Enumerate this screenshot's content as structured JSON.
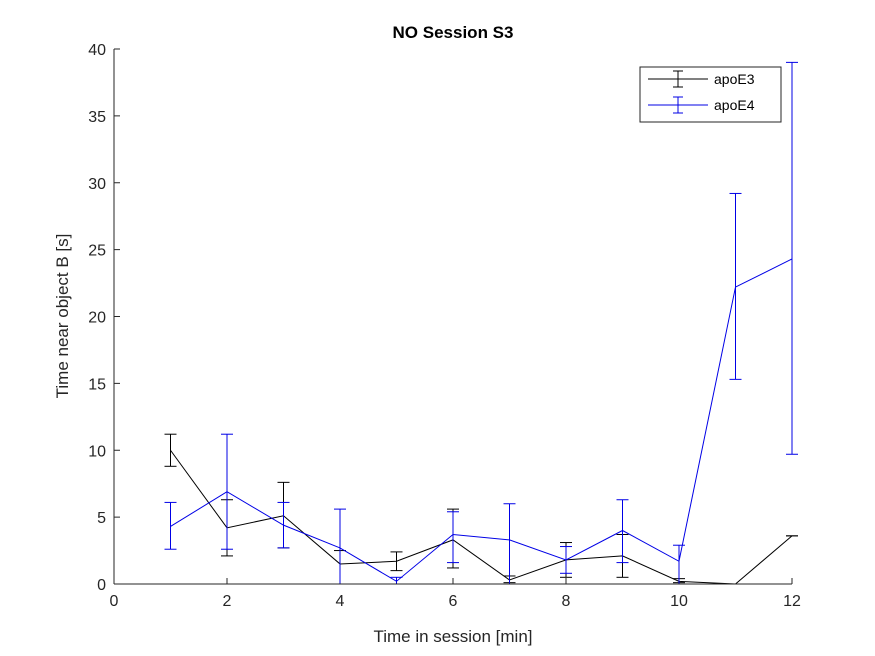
{
  "chart_data": {
    "type": "line",
    "title": "NO Session S3",
    "xlabel": "Time in session [min]",
    "ylabel": "Time near object B [s]",
    "xlim": [
      0,
      12
    ],
    "ylim": [
      0,
      40
    ],
    "xticks": [
      "0",
      "2",
      "4",
      "6",
      "8",
      "10",
      "12"
    ],
    "yticks": [
      "0",
      "5",
      "10",
      "15",
      "20",
      "25",
      "30",
      "35",
      "40"
    ],
    "grid": false,
    "legend_position": "top-right",
    "error_bars": true,
    "series": [
      {
        "name": "apoE3",
        "color": "#000000",
        "x": [
          1,
          2,
          3,
          4,
          5,
          6,
          7,
          8,
          9,
          10,
          11,
          12
        ],
        "y": [
          10.0,
          4.2,
          5.1,
          1.5,
          1.7,
          3.3,
          0.3,
          1.8,
          2.1,
          0.2,
          0.0,
          3.6
        ],
        "err_low": [
          1.2,
          2.1,
          2.4,
          1.5,
          0.7,
          2.1,
          0.2,
          1.3,
          1.6,
          0.1,
          0.0,
          0.0
        ],
        "err_high": [
          1.2,
          2.1,
          2.5,
          1.0,
          0.7,
          2.3,
          0.3,
          1.3,
          1.6,
          0.2,
          0.0,
          0.0
        ]
      },
      {
        "name": "apoE4",
        "color": "#0000e6",
        "x": [
          1,
          2,
          3,
          4,
          5,
          6,
          7,
          8,
          9,
          10,
          11,
          12
        ],
        "y": [
          4.3,
          6.9,
          4.4,
          2.7,
          0.2,
          3.7,
          3.3,
          1.8,
          4.0,
          1.7,
          22.2,
          24.3
        ],
        "err_low": [
          1.7,
          4.3,
          1.7,
          2.7,
          0.2,
          2.1,
          3.3,
          1.0,
          2.4,
          1.7,
          6.9,
          14.6
        ],
        "err_high": [
          1.8,
          4.3,
          1.7,
          2.9,
          0.3,
          1.7,
          2.7,
          1.0,
          2.3,
          1.2,
          7.0,
          14.7
        ]
      }
    ]
  }
}
